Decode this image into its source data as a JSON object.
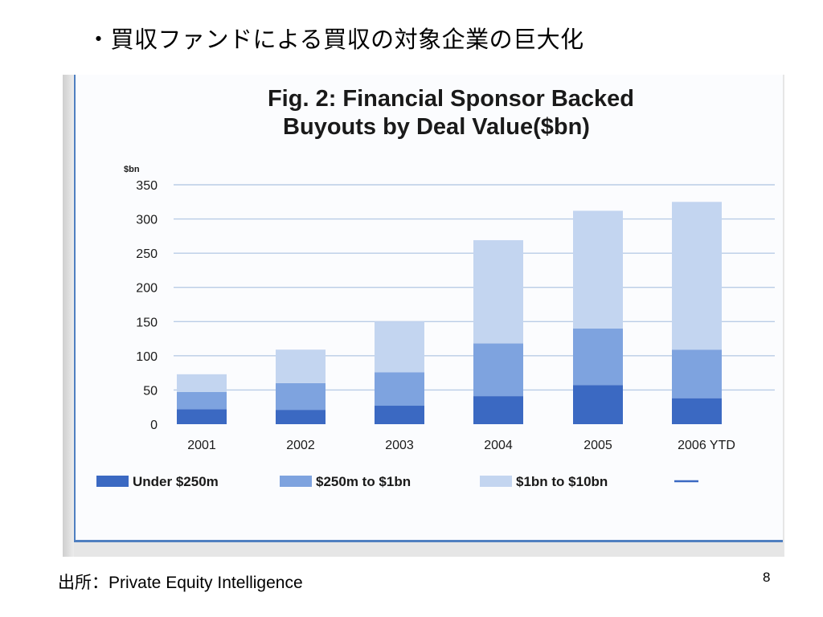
{
  "slide": {
    "title": "・買収ファンドによる買収の対象企業の巨大化",
    "source": "出所：Private Equity Intelligence",
    "page_number": "8"
  },
  "colors": {
    "under_250m": "#3b69c2",
    "250m_to_1bn": "#7ea3df",
    "1bn_to_10bn": "#c3d5f0",
    "gridline": "#b9cce6",
    "frame": "#4f7fc0"
  },
  "chart_data": {
    "type": "bar",
    "stacked": true,
    "title_lines": [
      "Fig. 2: Financial Sponsor Backed",
      "Buyouts by Deal Value($bn)"
    ],
    "unit_label": "$bn",
    "categories": [
      "2001",
      "2002",
      "2003",
      "2004",
      "2005",
      "2006 YTD"
    ],
    "ylim": [
      0,
      350
    ],
    "yticks": [
      0,
      50,
      100,
      150,
      200,
      250,
      300,
      350
    ],
    "grid": true,
    "legend_position": "bottom",
    "series": [
      {
        "name": "Under $250m",
        "color_key": "under_250m",
        "values": [
          22,
          21,
          27,
          41,
          57,
          38
        ]
      },
      {
        "name": "$250m to $1bn",
        "color_key": "250m_to_1bn",
        "values": [
          25,
          39,
          49,
          77,
          83,
          71
        ]
      },
      {
        "name": "$1bn to $10bn",
        "color_key": "1bn_to_10bn",
        "values": [
          26,
          49,
          74,
          151,
          172,
          216
        ]
      }
    ],
    "legend_extra": ""
  }
}
